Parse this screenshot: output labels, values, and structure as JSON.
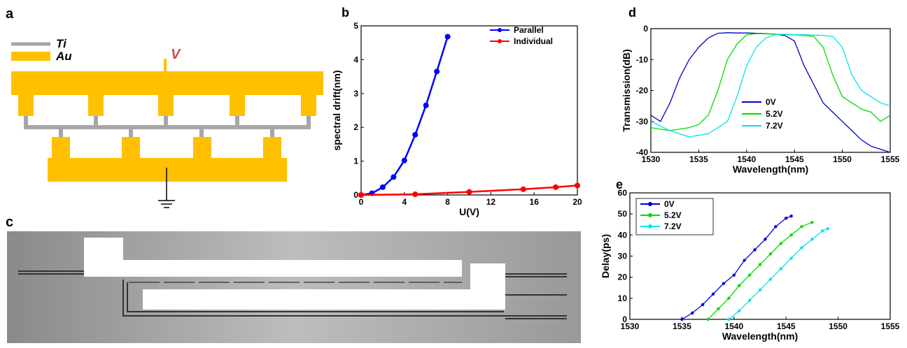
{
  "panels": {
    "a": {
      "label": "a",
      "legend": [
        {
          "name": "Ti",
          "color": "#a6a6a6"
        },
        {
          "name": "Au",
          "color": "#ffc000"
        }
      ],
      "voltage_label": "V",
      "voltage_color": "#c0504d"
    },
    "c": {
      "label": "c"
    }
  },
  "chart_data": [
    {
      "id": "b",
      "panel_label": "b",
      "type": "line",
      "xlabel": "U(V)",
      "ylabel": "spectral drift(nm)",
      "xlim": [
        0,
        20
      ],
      "ylim": [
        0,
        5
      ],
      "xticks": [
        0,
        4,
        8,
        12,
        16,
        20
      ],
      "yticks": [
        0,
        1,
        2,
        3,
        4,
        5
      ],
      "legend_position": "top-right",
      "series": [
        {
          "name": "Parallel",
          "color": "#0000ff",
          "x": [
            0,
            1,
            2,
            3,
            4,
            5,
            6,
            7,
            8
          ],
          "y": [
            0,
            0.05,
            0.23,
            0.53,
            1.02,
            1.78,
            2.65,
            3.65,
            4.68
          ]
        },
        {
          "name": "Individual",
          "color": "#ff0000",
          "x": [
            0,
            5,
            10,
            15,
            18,
            20
          ],
          "y": [
            0,
            0.02,
            0.09,
            0.17,
            0.23,
            0.28
          ]
        }
      ]
    },
    {
      "id": "d",
      "panel_label": "d",
      "type": "line",
      "xlabel": "Wavelength(nm)",
      "ylabel": "Transmission(dB)",
      "xlim": [
        1530,
        1555
      ],
      "ylim": [
        -40,
        0
      ],
      "xticks": [
        1530,
        1535,
        1540,
        1545,
        1550,
        1555
      ],
      "yticks": [
        0,
        -10,
        -20,
        -30,
        -40
      ],
      "legend_position": "lower-center",
      "series": [
        {
          "name": "0V",
          "color": "#0000cd",
          "x": [
            1530,
            1531,
            1532,
            1533,
            1534,
            1535,
            1536,
            1537,
            1538,
            1539,
            1540,
            1541,
            1542,
            1543,
            1544,
            1545,
            1546,
            1547,
            1548,
            1549,
            1550,
            1551,
            1552,
            1553,
            1554,
            1555
          ],
          "y": [
            -28,
            -30,
            -24,
            -16,
            -10,
            -6,
            -3,
            -1.5,
            -1.3,
            -1.4,
            -1.4,
            -1.5,
            -1.6,
            -1.8,
            -2.2,
            -4,
            -12,
            -18,
            -24,
            -27,
            -30,
            -33,
            -36,
            -38,
            -39,
            -40
          ]
        },
        {
          "name": "5.2V",
          "color": "#00dd00",
          "x": [
            1530,
            1532,
            1534,
            1535,
            1536,
            1537,
            1538,
            1539,
            1540,
            1541,
            1542,
            1543,
            1544,
            1545,
            1546,
            1547,
            1548,
            1549,
            1550,
            1551,
            1552,
            1553,
            1554,
            1555
          ],
          "y": [
            -32,
            -33,
            -32,
            -31,
            -28,
            -20,
            -10,
            -5,
            -2,
            -1.6,
            -1.7,
            -1.8,
            -1.9,
            -2,
            -2.2,
            -2.5,
            -6,
            -15,
            -22,
            -24,
            -26,
            -27,
            -30,
            -28
          ]
        },
        {
          "name": "7.2V",
          "color": "#00e5ee",
          "x": [
            1530,
            1532,
            1534,
            1536,
            1537,
            1538,
            1539,
            1540,
            1541,
            1542,
            1543,
            1544,
            1545,
            1546,
            1547,
            1548,
            1549,
            1550,
            1551,
            1552,
            1553,
            1554,
            1555
          ],
          "y": [
            -30,
            -33,
            -35,
            -34,
            -32,
            -30,
            -22,
            -12,
            -6,
            -3,
            -2,
            -1.8,
            -1.9,
            -2,
            -2.1,
            -2.2,
            -2.5,
            -6,
            -15,
            -20,
            -22,
            -24,
            -25
          ]
        }
      ]
    },
    {
      "id": "e",
      "panel_label": "e",
      "type": "scatter",
      "xlabel": "Wavelength(nm)",
      "ylabel": "Delay(ps)",
      "xlim": [
        1530,
        1555
      ],
      "ylim": [
        0,
        60
      ],
      "xticks": [
        1530,
        1535,
        1540,
        1545,
        1550,
        1555
      ],
      "yticks": [
        0,
        10,
        20,
        30,
        40,
        50,
        60
      ],
      "legend_position": "top-left",
      "series": [
        {
          "name": "0V",
          "color": "#0000cd",
          "x": [
            1535,
            1536,
            1537,
            1538,
            1539,
            1540,
            1541,
            1542,
            1543,
            1544,
            1545,
            1545.5
          ],
          "y": [
            0,
            3,
            7,
            12,
            17,
            21,
            28,
            33,
            38,
            44,
            48,
            49
          ]
        },
        {
          "name": "5.2V",
          "color": "#00dd00",
          "x": [
            1537.5,
            1538.5,
            1539.5,
            1540.5,
            1541.5,
            1542.5,
            1543.5,
            1544.5,
            1545.5,
            1546.5,
            1547.5
          ],
          "y": [
            0,
            5,
            10,
            16,
            21,
            26,
            31,
            36,
            40,
            44,
            46
          ]
        },
        {
          "name": "7.2V",
          "color": "#00e5ee",
          "x": [
            1539.5,
            1540.5,
            1541.5,
            1542.5,
            1543.5,
            1544.5,
            1545.5,
            1546.5,
            1547.5,
            1548.5,
            1549
          ],
          "y": [
            0,
            4,
            9,
            14,
            19,
            24,
            29,
            34,
            38,
            42,
            43
          ]
        }
      ]
    }
  ]
}
